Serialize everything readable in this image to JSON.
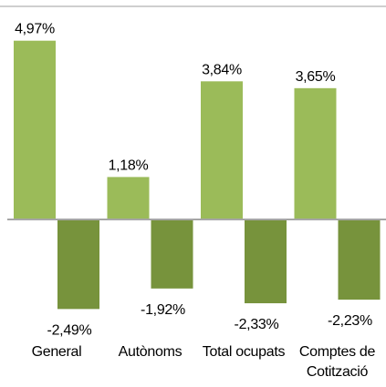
{
  "chart_data": {
    "type": "bar",
    "categories": [
      "General",
      "Autònoms",
      "Total ocupats",
      "Comptes de Cotització"
    ],
    "series": [
      {
        "color": "#9bbb59",
        "values": [
          4.97,
          1.18,
          3.84,
          3.65
        ],
        "value_labels": [
          "4,97%",
          "1,18%",
          "3,84%",
          "3,65%"
        ]
      },
      {
        "color": "#77933c",
        "values": [
          -2.49,
          -1.92,
          -2.33,
          -2.23
        ],
        "value_labels": [
          "-2,49%",
          "-1,92%",
          "-2,33%",
          "-2,23%"
        ]
      }
    ]
  }
}
